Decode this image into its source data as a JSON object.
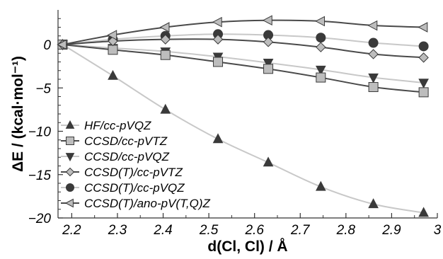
{
  "chart_data": {
    "type": "line",
    "xlabel": "d(Cl, Cl) / Å",
    "ylabel": "ΔE / (kcal·mol⁻¹)",
    "xlim": [
      2.17,
      3.0
    ],
    "ylim": [
      -20,
      4
    ],
    "xticks": [
      2.2,
      2.3,
      2.4,
      2.5,
      2.6,
      2.7,
      2.8,
      2.9,
      3.0
    ],
    "xtick_labels": [
      "2.2",
      "2.3",
      "2.4",
      "2.5",
      "2.6",
      "2.7",
      "2.8",
      "2.9",
      "3"
    ],
    "yticks": [
      0,
      -5,
      -10,
      -15,
      -20
    ],
    "ytick_labels": [
      "0",
      "−5",
      "−10",
      "−15",
      "−20"
    ],
    "grid": false,
    "legend_position": "bottom-left",
    "x": [
      2.18,
      2.29,
      2.405,
      2.52,
      2.63,
      2.745,
      2.86,
      2.97
    ],
    "series": [
      {
        "name": "HF/cc-pVQZ",
        "marker": "triangle-up",
        "line_color": "#c8c8c8",
        "marker_color": "#3a3a3a",
        "values": [
          0,
          -3.6,
          -7.5,
          -10.9,
          -13.6,
          -16.4,
          -18.4,
          -19.4
        ]
      },
      {
        "name": "CCSD/cc-pVTZ",
        "marker": "square",
        "line_color": "#4a4a4a",
        "marker_color": "#bdbdbd",
        "values": [
          0,
          -0.6,
          -1.2,
          -2.0,
          -2.8,
          -3.8,
          -4.9,
          -5.5
        ]
      },
      {
        "name": "CCSD/cc-pVQZ",
        "marker": "triangle-down",
        "line_color": "#c8c8c8",
        "marker_color": "#3a3a3a",
        "values": [
          0,
          -0.4,
          -0.8,
          -1.4,
          -2.1,
          -2.9,
          -3.8,
          -4.4
        ]
      },
      {
        "name": "CCSD(T)/cc-pVTZ",
        "marker": "diamond",
        "line_color": "#4a4a4a",
        "marker_color": "#bdbdbd",
        "values": [
          0,
          0.4,
          0.6,
          0.6,
          0.3,
          -0.3,
          -1.1,
          -1.5
        ]
      },
      {
        "name": "CCSD(T)/cc-pVQZ",
        "marker": "circle",
        "line_color": "#c8c8c8",
        "marker_color": "#3a3a3a",
        "values": [
          0,
          0.6,
          1.0,
          1.2,
          1.1,
          0.8,
          0.2,
          -0.2
        ]
      },
      {
        "name": "CCSD(T)/ano-pV(T,Q)Z",
        "marker": "triangle-left",
        "line_color": "#4a4a4a",
        "marker_color": "#bdbdbd",
        "values": [
          0,
          1.1,
          2.0,
          2.6,
          2.8,
          2.7,
          2.2,
          2.0
        ]
      }
    ]
  }
}
